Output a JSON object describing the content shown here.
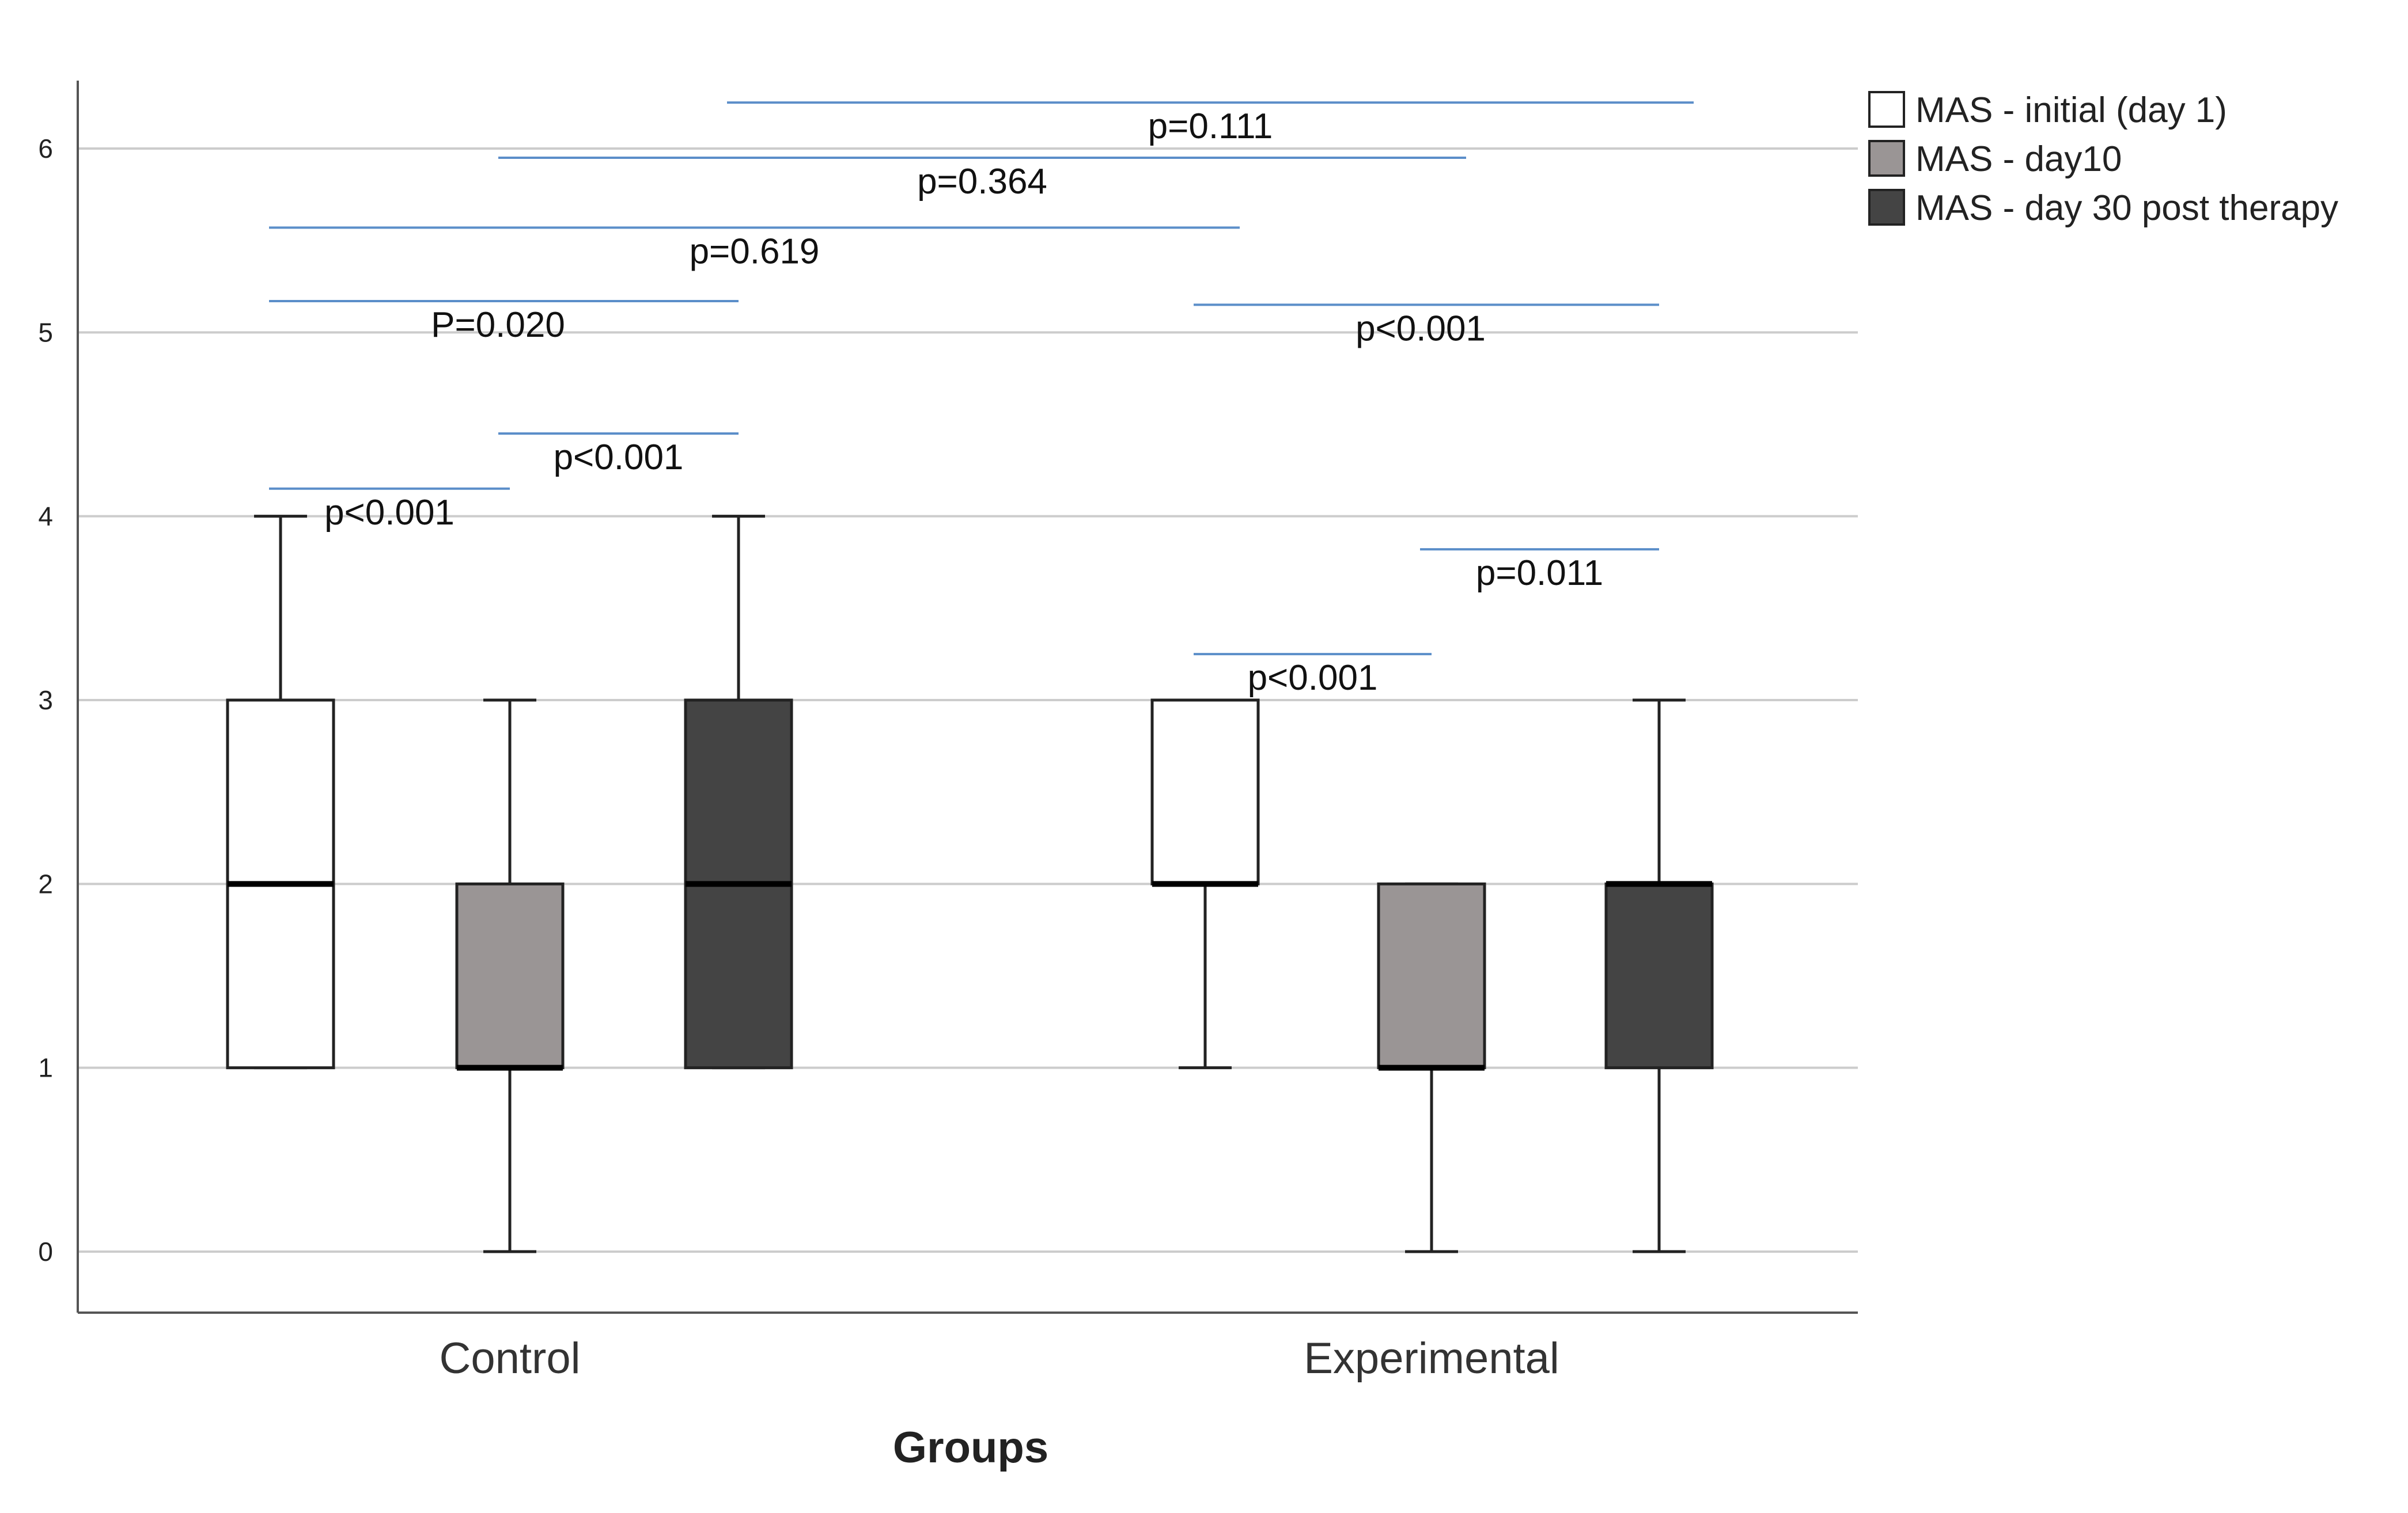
{
  "chart_data": {
    "type": "box",
    "title": "",
    "xlabel": "Groups",
    "ylabel": "",
    "ylim": [
      -0.6,
      6.3
    ],
    "yticks": [
      0,
      1,
      2,
      3,
      4,
      5,
      6
    ],
    "grid": true,
    "legend_position": "top-right",
    "categories": [
      "Control",
      "Experimental"
    ],
    "series": [
      {
        "name": "MAS - initial (day 1)",
        "color": "#ffffff",
        "boxes": [
          {
            "category": "Control",
            "min": 1,
            "q1": 1,
            "median": 2,
            "q3": 3,
            "max": 4
          },
          {
            "category": "Experimental",
            "min": 1,
            "q1": 2,
            "median": 2,
            "q3": 3,
            "max": 3
          }
        ]
      },
      {
        "name": "MAS - day10",
        "color": "#9a9595",
        "boxes": [
          {
            "category": "Control",
            "min": 0,
            "q1": 1,
            "median": 1,
            "q3": 2,
            "max": 3
          },
          {
            "category": "Experimental",
            "min": 0,
            "q1": 1,
            "median": 1,
            "q3": 2,
            "max": 2
          }
        ]
      },
      {
        "name": "MAS - day 30 post therapy",
        "color": "#444444",
        "boxes": [
          {
            "category": "Control",
            "min": 1,
            "q1": 1,
            "median": 2,
            "q3": 3,
            "max": 4
          },
          {
            "category": "Experimental",
            "min": 0,
            "q1": 1,
            "median": 2,
            "q3": 2,
            "max": 3
          }
        ]
      }
    ],
    "annotations": [
      {
        "label": "p=0.111",
        "y": 6.25,
        "from": {
          "category": "Control",
          "series": 2
        },
        "to": {
          "category": "Experimental",
          "series": 2
        }
      },
      {
        "label": "p=0.364",
        "y": 5.95,
        "from": {
          "category": "Control",
          "series": 1
        },
        "to": {
          "category": "Experimental",
          "series": 1
        }
      },
      {
        "label": "p=0.619",
        "y": 5.57,
        "from": {
          "category": "Control",
          "series": 0
        },
        "to": {
          "category": "Experimental",
          "series": 0
        }
      },
      {
        "label": "P=0.020",
        "y": 5.17,
        "from": {
          "category": "Control",
          "series": 0
        },
        "to": {
          "category": "Control",
          "series": 2
        }
      },
      {
        "label": "p<0.001",
        "y": 5.15,
        "from": {
          "category": "Experimental",
          "series": 0
        },
        "to": {
          "category": "Experimental",
          "series": 2
        }
      },
      {
        "label": "p<0.001",
        "y": 4.45,
        "from": {
          "category": "Control",
          "series": 1
        },
        "to": {
          "category": "Control",
          "series": 2
        }
      },
      {
        "label": "p<0.001",
        "y": 4.15,
        "from": {
          "category": "Control",
          "series": 0
        },
        "to": {
          "category": "Control",
          "series": 1
        }
      },
      {
        "label": "p=0.011",
        "y": 3.82,
        "from": {
          "category": "Experimental",
          "series": 1
        },
        "to": {
          "category": "Experimental",
          "series": 2
        }
      },
      {
        "label": "p<0.001",
        "y": 3.25,
        "from": {
          "category": "Experimental",
          "series": 0
        },
        "to": {
          "category": "Experimental",
          "series": 1
        }
      }
    ]
  },
  "colors": {
    "annotation_line": "#5b8ec9",
    "grid": "#cccccc",
    "axis": "#555555",
    "box_stroke": "#222222"
  }
}
